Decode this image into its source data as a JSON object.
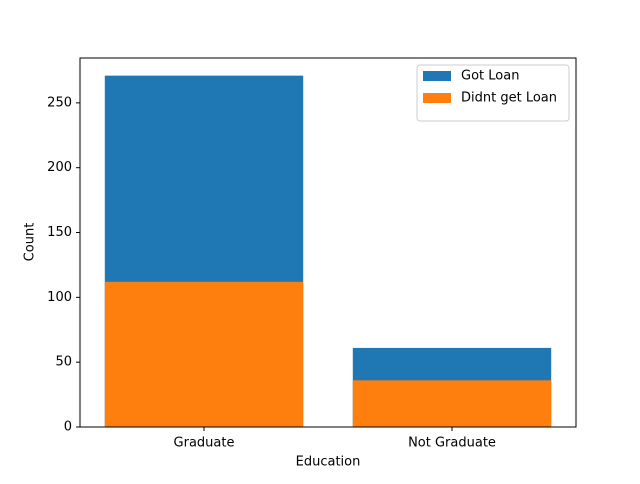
{
  "chart_data": {
    "type": "bar",
    "x_label": "Education",
    "y_label": "Count",
    "categories": [
      "Graduate",
      "Not Graduate"
    ],
    "series": [
      {
        "name": "Got Loan",
        "color": "#1f77b4",
        "values": [
          271,
          61
        ]
      },
      {
        "name": "Didnt get Loan",
        "color": "#ff7f0e",
        "values": [
          112,
          36
        ]
      }
    ],
    "ylim": [
      0,
      284.6
    ],
    "yticks": [
      0,
      50,
      100,
      150,
      200,
      250
    ],
    "legend": "upper right"
  }
}
